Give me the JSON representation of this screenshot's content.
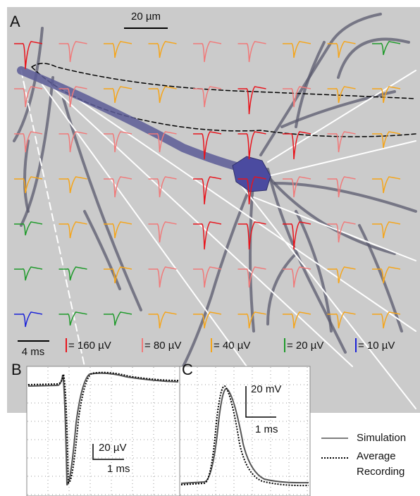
{
  "panel_a": {
    "label": "A",
    "space_scale": "20 µm",
    "time_scale": "4 ms",
    "legend": [
      "= 160 µV",
      "= 80 µV",
      "= 40 µV",
      "= 20 µV",
      "= 10 µV"
    ]
  },
  "panel_b": {
    "label": "B",
    "amplitude_scale": "20 µV",
    "time_scale": "1 ms"
  },
  "panel_c": {
    "label": "C",
    "amplitude_scale": "20 mV",
    "time_scale": "1 ms"
  },
  "trace_legend": {
    "solid": "Simulation",
    "dotted": [
      "Average",
      "Recording"
    ]
  }
}
